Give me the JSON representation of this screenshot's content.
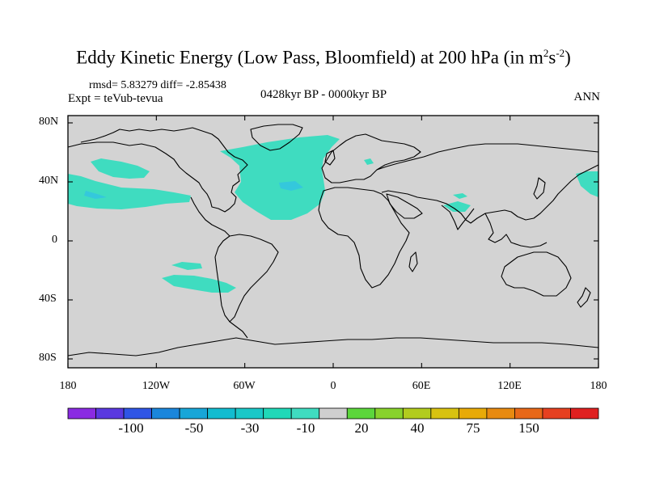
{
  "title_main": "Eddy Kinetic Energy (Low Pass, Bloomfield) at 200 hPa (in m",
  "title_sup1": "2",
  "title_mid": "s",
  "title_sup2": "-2",
  "title_end": ")",
  "stats": "rmsd= 5.83279 diff= -2.85438",
  "subtitle": "0428kyr BP - 0000kyr BP",
  "left_label": "Expt = teVub-tevua",
  "right_label": "ANN",
  "map": {
    "projection": "cylindrical equidistant",
    "background_color": "#d3d3d3",
    "fill_color": "#3fdcc0",
    "darker_fill_color": "#34c8dc",
    "lat_ticks": [
      "80N",
      "40N",
      "0",
      "40S",
      "80S"
    ],
    "lon_ticks": [
      "180",
      "120W",
      "60W",
      "0",
      "60E",
      "120E",
      "180"
    ]
  },
  "colorbar": {
    "colors": [
      "#8a2be2",
      "#5a38e0",
      "#2f55e6",
      "#1a86dc",
      "#18a6d8",
      "#12bcd0",
      "#1ac8c8",
      "#20d8b8",
      "#3fdcc0",
      "#cfcfcf",
      "#5cd63c",
      "#88d22c",
      "#b2cc1e",
      "#d8c210",
      "#e8aa08",
      "#e88a10",
      "#e86818",
      "#e64020",
      "#e02020"
    ],
    "labels": [
      "-100",
      "-50",
      "-30",
      "-10",
      "20",
      "40",
      "75",
      "150"
    ]
  }
}
